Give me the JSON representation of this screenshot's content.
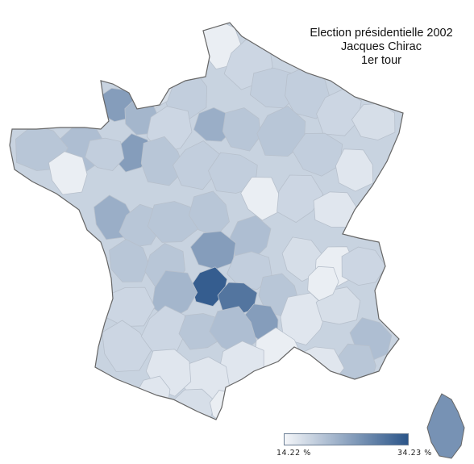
{
  "title": {
    "line1": "Election présidentielle 2002",
    "line2": "Jacques Chirac",
    "line3": "1er tour"
  },
  "legend": {
    "min_label": "14.22 %",
    "max_label": "34.23 %",
    "min_value": 14.22,
    "max_value": 34.23,
    "color_low": "#f4f6f9",
    "color_high": "#2b5589"
  },
  "map_colors": {
    "border": "#666666",
    "inner_border": "#b7c0cc"
  }
}
